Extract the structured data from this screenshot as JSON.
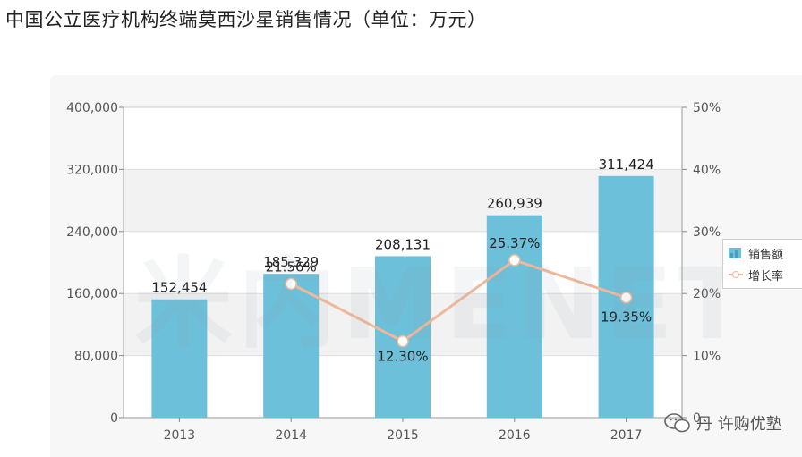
{
  "title": "中国公立医疗机构终端莫西沙星销售情况（单位：万元）",
  "watermark": "米内MENET",
  "brand": {
    "name": "丹 许购优塾",
    "icon": "wechat-chat-icon"
  },
  "colors": {
    "bar": "#6cc0da",
    "line": "#f0b89a",
    "marker_fill": "#ffffff"
  },
  "chart_data": {
    "type": "bar",
    "title": "中国公立医疗机构终端莫西沙星销售情况（单位：万元）",
    "categories": [
      "2013",
      "2014",
      "2015",
      "2016",
      "2017"
    ],
    "series": [
      {
        "name": "销售额",
        "type": "bar",
        "axis": "left",
        "values": [
          152454,
          185329,
          208131,
          260939,
          311424
        ],
        "labels": [
          "152,454",
          "185,329",
          "208,131",
          "260,939",
          "311,424"
        ]
      },
      {
        "name": "增长率",
        "type": "line",
        "axis": "right",
        "x": [
          "2014",
          "2015",
          "2016",
          "2017"
        ],
        "values": [
          21.56,
          12.3,
          25.37,
          19.35
        ],
        "labels": [
          "21.56%",
          "12.30%",
          "25.37%",
          "19.35%"
        ]
      }
    ],
    "left_axis": {
      "min": 0,
      "max": 400000,
      "ticks": [
        "0",
        "80,000",
        "160,000",
        "240,000",
        "320,000",
        "400,000"
      ]
    },
    "right_axis": {
      "min": 0,
      "max": 50,
      "ticks": [
        "0",
        "10%",
        "20%",
        "30%",
        "40%",
        "50%"
      ]
    },
    "legend": [
      "销售额",
      "增长率"
    ],
    "legend_position": "right",
    "grid": true
  }
}
